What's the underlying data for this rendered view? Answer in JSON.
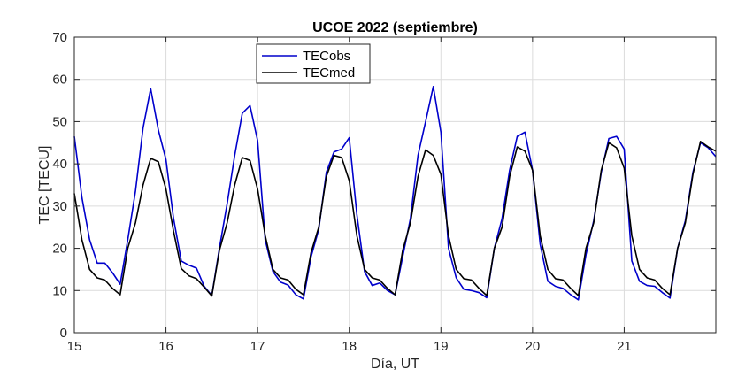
{
  "chart_data": {
    "type": "line",
    "title": "UCOE 2022 (septiembre)",
    "xlabel": "Día, UT",
    "ylabel": "TEC [TECU]",
    "xlim": [
      15,
      22
    ],
    "ylim": [
      0,
      70
    ],
    "xticks": [
      15,
      16,
      17,
      18,
      19,
      20,
      21
    ],
    "yticks": [
      0,
      10,
      20,
      30,
      40,
      50,
      60,
      70
    ],
    "grid": true,
    "legend_position": "top-center",
    "series": [
      {
        "name": "TECobs",
        "color": "#0000cc",
        "x": [
          15.0,
          15.083,
          15.167,
          15.25,
          15.333,
          15.417,
          15.5,
          15.583,
          15.667,
          15.75,
          15.833,
          15.917,
          16.0,
          16.083,
          16.167,
          16.25,
          16.333,
          16.417,
          16.5,
          16.583,
          16.667,
          16.75,
          16.833,
          16.917,
          17.0,
          17.083,
          17.167,
          17.25,
          17.333,
          17.417,
          17.5,
          17.583,
          17.667,
          17.75,
          17.833,
          17.917,
          18.0,
          18.083,
          18.167,
          18.25,
          18.333,
          18.417,
          18.5,
          18.583,
          18.667,
          18.75,
          18.833,
          18.917,
          19.0,
          19.083,
          19.167,
          19.25,
          19.333,
          19.417,
          19.5,
          19.583,
          19.667,
          19.75,
          19.833,
          19.917,
          20.0,
          20.083,
          20.167,
          20.25,
          20.333,
          20.417,
          20.5,
          20.583,
          20.667,
          20.75,
          20.833,
          20.917,
          21.0,
          21.083,
          21.167,
          21.25,
          21.333,
          21.417,
          21.5,
          21.583,
          21.667,
          21.75,
          21.833,
          21.917,
          22.0
        ],
        "values": [
          46.5,
          32.0,
          22.0,
          16.5,
          16.5,
          14.2,
          11.5,
          22.0,
          33.5,
          48.5,
          57.8,
          48.0,
          41.0,
          27.0,
          17.0,
          16.0,
          15.3,
          11.0,
          8.8,
          20.0,
          30.5,
          42.0,
          52.0,
          53.8,
          45.5,
          22.0,
          14.5,
          12.0,
          11.3,
          9.0,
          8.0,
          18.0,
          24.5,
          38.0,
          42.8,
          43.5,
          46.2,
          28.0,
          14.5,
          11.2,
          11.8,
          10.0,
          9.0,
          18.0,
          27.0,
          42.0,
          50.0,
          58.3,
          47.5,
          20.0,
          13.0,
          10.3,
          10.0,
          9.5,
          8.3,
          20.0,
          27.0,
          38.5,
          46.5,
          47.5,
          38.5,
          21.0,
          12.2,
          11.0,
          10.5,
          9.0,
          7.8,
          18.5,
          26.5,
          38.0,
          46.0,
          46.5,
          43.5,
          17.0,
          12.2,
          11.2,
          11.0,
          9.5,
          8.2,
          20.0,
          26.5,
          38.0,
          45.0,
          43.8,
          41.7
        ]
      },
      {
        "name": "TECmed",
        "color": "#000000",
        "x": [
          15.0,
          15.083,
          15.167,
          15.25,
          15.333,
          15.417,
          15.5,
          15.583,
          15.667,
          15.75,
          15.833,
          15.917,
          16.0,
          16.083,
          16.167,
          16.25,
          16.333,
          16.417,
          16.5,
          16.583,
          16.667,
          16.75,
          16.833,
          16.917,
          17.0,
          17.083,
          17.167,
          17.25,
          17.333,
          17.417,
          17.5,
          17.583,
          17.667,
          17.75,
          17.833,
          17.917,
          18.0,
          18.083,
          18.167,
          18.25,
          18.333,
          18.417,
          18.5,
          18.583,
          18.667,
          18.75,
          18.833,
          18.917,
          19.0,
          19.083,
          19.167,
          19.25,
          19.333,
          19.417,
          19.5,
          19.583,
          19.667,
          19.75,
          19.833,
          19.917,
          20.0,
          20.083,
          20.167,
          20.25,
          20.333,
          20.417,
          20.5,
          20.583,
          20.667,
          20.75,
          20.833,
          20.917,
          21.0,
          21.083,
          21.167,
          21.25,
          21.333,
          21.417,
          21.5,
          21.583,
          21.667,
          21.75,
          21.833,
          21.917,
          22.0
        ],
        "values": [
          33.0,
          22.0,
          15.0,
          13.0,
          12.5,
          10.5,
          9.0,
          20.0,
          26.0,
          35.0,
          41.3,
          40.5,
          34.0,
          24.0,
          15.2,
          13.5,
          12.8,
          10.8,
          8.7,
          19.5,
          26.0,
          35.0,
          41.5,
          40.8,
          34.0,
          23.0,
          15.0,
          13.0,
          12.5,
          10.3,
          9.0,
          19.0,
          25.0,
          37.0,
          42.0,
          41.5,
          36.0,
          23.0,
          15.0,
          13.0,
          12.5,
          10.5,
          9.0,
          19.5,
          26.0,
          37.0,
          43.3,
          42.0,
          37.5,
          23.0,
          15.0,
          12.8,
          12.5,
          10.5,
          8.8,
          20.0,
          25.0,
          37.0,
          44.0,
          43.0,
          38.5,
          23.0,
          15.0,
          12.8,
          12.5,
          10.5,
          8.8,
          20.0,
          26.0,
          38.5,
          45.0,
          43.8,
          39.0,
          23.0,
          15.0,
          13.0,
          12.5,
          10.5,
          9.0,
          20.0,
          26.0,
          37.5,
          45.3,
          44.0,
          43.0
        ]
      }
    ]
  }
}
